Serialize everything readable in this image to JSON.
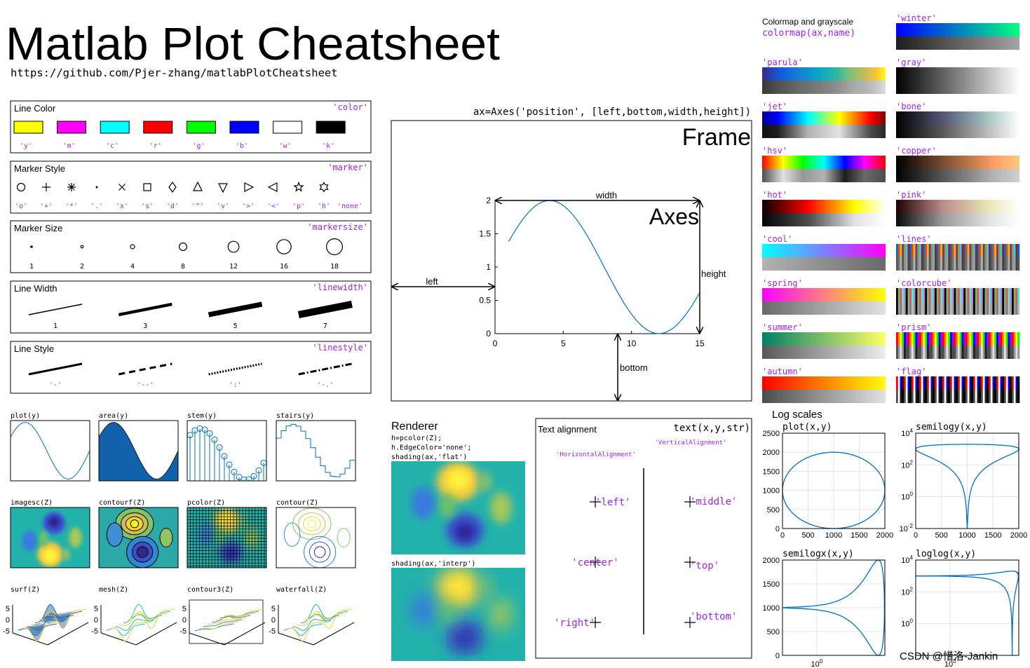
{
  "header": {
    "title": "Matlab Plot Cheatsheet",
    "url": "https://github.com/Pjer-zhang/matlabPlotCheatsheet"
  },
  "line_color": {
    "title": "Line Color",
    "keyword": "'color'",
    "items": [
      {
        "label": "'y'",
        "color": "#ffff00"
      },
      {
        "label": "'m'",
        "color": "#ff00ff"
      },
      {
        "label": "'c'",
        "color": "#00ffff"
      },
      {
        "label": "'r'",
        "color": "#ff0000"
      },
      {
        "label": "'g'",
        "color": "#00ff00"
      },
      {
        "label": "'b'",
        "color": "#0000ff"
      },
      {
        "label": "'w'",
        "color": "#ffffff"
      },
      {
        "label": "'k'",
        "color": "#000000"
      }
    ]
  },
  "marker_style": {
    "title": "Marker Style",
    "keyword": "'marker'",
    "items": [
      "'o'",
      "'+'",
      "'*'",
      "'.'",
      "'x'",
      "'s'",
      "'d'",
      "'^'",
      "'v'",
      "'>'",
      "'<'",
      "'p'",
      "'h'",
      "'none'"
    ]
  },
  "marker_size": {
    "title": "Marker Size",
    "keyword": "'markersize'",
    "items": [
      1,
      2,
      4,
      8,
      12,
      16,
      18
    ]
  },
  "line_width": {
    "title": "Line Width",
    "keyword": "'linewidth'",
    "items": [
      1,
      3,
      5,
      7
    ]
  },
  "line_style": {
    "title": "Line Style",
    "keyword": "'linestyle'",
    "items": [
      "'-'",
      "'--'",
      "':'",
      "'-.'"
    ]
  },
  "plot_types": [
    "plot(y)",
    "area(y)",
    "stem(y)",
    "stairs(y)",
    "imagesc(Z)",
    "contourf(Z)",
    "pcolor(Z)",
    "contour(Z)",
    "surf(Z)",
    "mesh(Z)",
    "contour3(Z)",
    "waterfall(Z)"
  ],
  "surface_ticks": [
    5,
    0,
    -5
  ],
  "frame_diagram": {
    "caption": "ax=Axes('position', [left,bottom,width,height])",
    "frame": "Frame",
    "axes": "Axes",
    "width": "width",
    "height": "height",
    "left": "left",
    "bottom": "bottom",
    "xticks": [
      0,
      5,
      10,
      15
    ],
    "yticks": [
      0,
      0.5,
      1,
      1.5,
      2
    ]
  },
  "renderer": {
    "title": "Renderer",
    "code": [
      "h=pcolor(Z);",
      "h.EdgeColor='none';",
      "shading(ax,'flat')"
    ],
    "interp": "shading(ax,'interp')"
  },
  "text_alignment": {
    "title": "Text alignment",
    "code": "text(x,y,str)",
    "vertical": "'VerticalAlignment'",
    "horizontal": "'HorizontalAlignment'",
    "horizontal_items": [
      "'left'",
      "'center'",
      "'right'"
    ],
    "vertical_items": [
      "'middle'",
      "'top'",
      "'bottom'"
    ]
  },
  "colormaps": {
    "title": "Colormap and grayscale",
    "code": "colormap(ax,name)",
    "names": [
      "'parula'",
      "'jet'",
      "'hsv'",
      "'hot'",
      "'cool'",
      "'spring'",
      "'summer'",
      "'autumn'",
      "'winter'",
      "'gray'",
      "'bone'",
      "'copper'",
      "'pink'",
      "'lines'",
      "'colorcube'",
      "'prism'",
      "'flag'"
    ]
  },
  "log_scales": {
    "title": "Log scales",
    "plots": [
      {
        "title": "plot(x,y)",
        "xticks": [
          0,
          500,
          1000,
          1500,
          2000
        ],
        "yticks": [
          0,
          500,
          1000,
          1500,
          2000,
          2500
        ]
      },
      {
        "title": "semilogy(x,y)",
        "xticks": [
          0,
          500,
          1000,
          1500,
          2000
        ],
        "yticks": [
          {
            "base": "10",
            "exp": 4
          },
          {
            "base": "10",
            "exp": 2
          },
          {
            "base": "10",
            "exp": 0
          },
          {
            "base": "10",
            "exp": -2
          }
        ]
      },
      {
        "title": "semilogx(x,y)",
        "xticks": [
          {
            "base": "10",
            "exp": 0
          }
        ],
        "yticks": [
          0,
          500,
          1000,
          1500,
          2000
        ]
      },
      {
        "title": "loglog(x,y)",
        "xticks": [
          {
            "base": "10",
            "exp": 0
          }
        ],
        "yticks": [
          {
            "base": "10",
            "exp": 4
          },
          {
            "base": "10",
            "exp": 2
          },
          {
            "base": "10",
            "exp": 0
          }
        ]
      }
    ]
  },
  "watermark": "CSDN @惜洛-Jankin"
}
